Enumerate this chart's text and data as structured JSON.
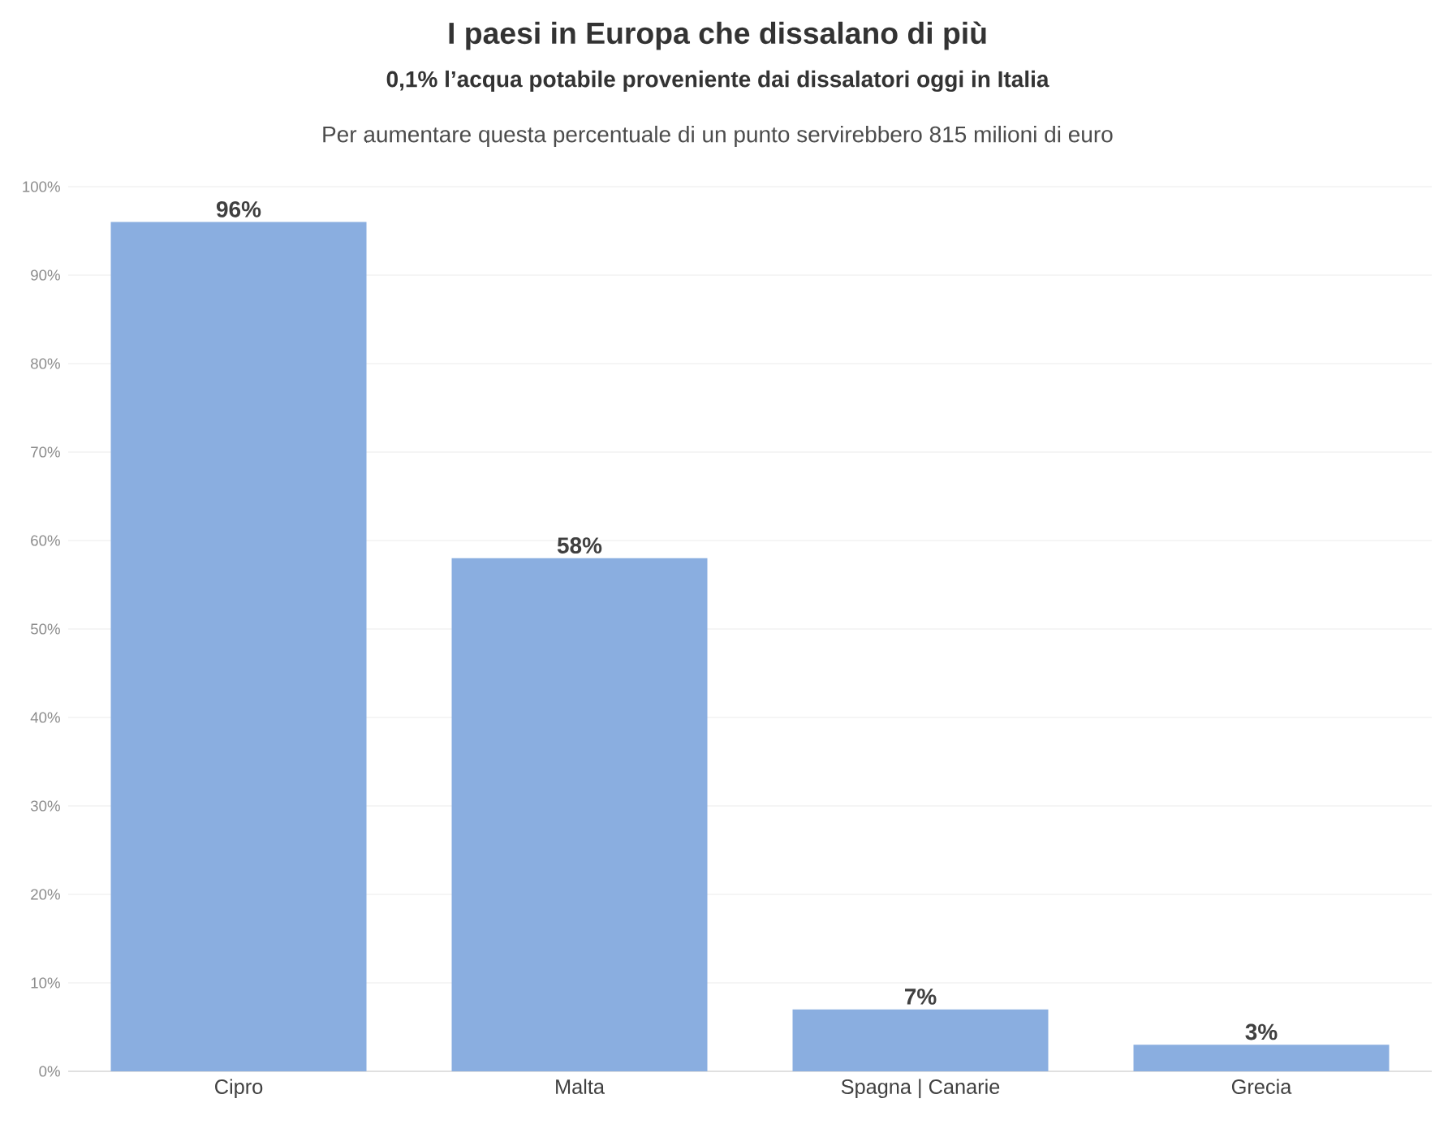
{
  "chart_data": {
    "type": "bar",
    "title": "I paesi in Europa che dissalano di più",
    "subtitle": "0,1% l’acqua potabile proveniente dai dissalatori oggi in Italia",
    "annotations": [
      "Per aumentare questa percentuale di un punto servirebbero 815 milioni di euro"
    ],
    "categories": [
      "Cipro",
      "Malta",
      "Spagna | Canarie",
      "Grecia"
    ],
    "values": [
      96,
      58,
      7,
      3
    ],
    "value_labels": [
      "96%",
      "58%",
      "7%",
      "3%"
    ],
    "color": "#8aaee0",
    "ylim": [
      0,
      100
    ],
    "yticks": [
      {
        "value": 0,
        "label": "0%"
      },
      {
        "value": 10,
        "label": "10%"
      },
      {
        "value": 20,
        "label": "20%"
      },
      {
        "value": 30,
        "label": "30%"
      },
      {
        "value": 40,
        "label": "40%"
      },
      {
        "value": 50,
        "label": "50%"
      },
      {
        "value": 60,
        "label": "60%"
      },
      {
        "value": 70,
        "label": "70%"
      },
      {
        "value": 80,
        "label": "80%"
      },
      {
        "value": 90,
        "label": "90%"
      },
      {
        "value": 100,
        "label": "100%"
      }
    ],
    "grid": "y"
  }
}
